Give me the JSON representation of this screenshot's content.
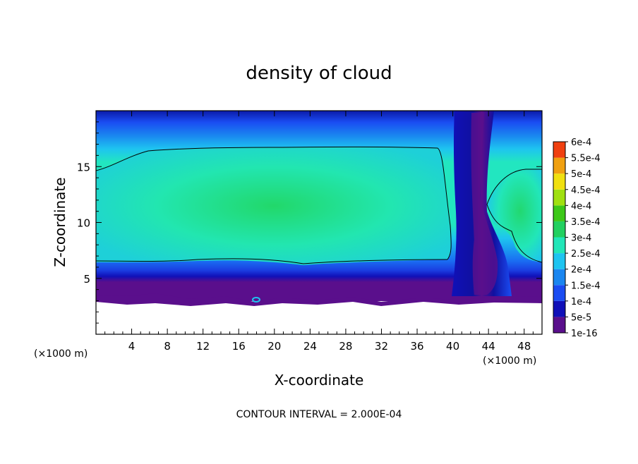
{
  "chart_data": {
    "type": "heatmap",
    "title": "density of cloud",
    "xlabel": "X-coordinate",
    "ylabel": "Z-coordinate",
    "x_unit": "(×1000 m)",
    "y_unit": "(×1000 m)",
    "xlim": [
      0,
      50
    ],
    "ylim": [
      0,
      20
    ],
    "x_ticks": [
      4,
      8,
      12,
      16,
      20,
      24,
      28,
      32,
      36,
      40,
      44,
      48
    ],
    "y_ticks": [
      5,
      10,
      15
    ],
    "footnote": "CONTOUR INTERVAL = 2.000E-04",
    "colorbar": {
      "levels": [
        "1e-16",
        "5e-5",
        "1e-4",
        "1.5e-4",
        "2e-4",
        "2.5e-4",
        "3e-4",
        "3.5e-4",
        "4e-4",
        "4.5e-4",
        "5e-4",
        "5.5e-4",
        "6e-4"
      ],
      "colors": [
        "#5a0f8c",
        "#1010b8",
        "#1a4cf2",
        "#1a86f0",
        "#1ec4f0",
        "#22e6b8",
        "#22d060",
        "#3cc818",
        "#a0e010",
        "#f0e010",
        "#f0a010",
        "#f04010",
        "#f07070",
        "#f4b0b0"
      ]
    },
    "features": {
      "cloud_layer_base_km": 3.3,
      "main_cloud_x_range": [
        0,
        40
      ],
      "main_cloud_z_range": [
        6.5,
        16.5
      ],
      "convective_column_x": [
        40,
        44
      ],
      "right_cloud_x_range": [
        44,
        50
      ]
    }
  }
}
